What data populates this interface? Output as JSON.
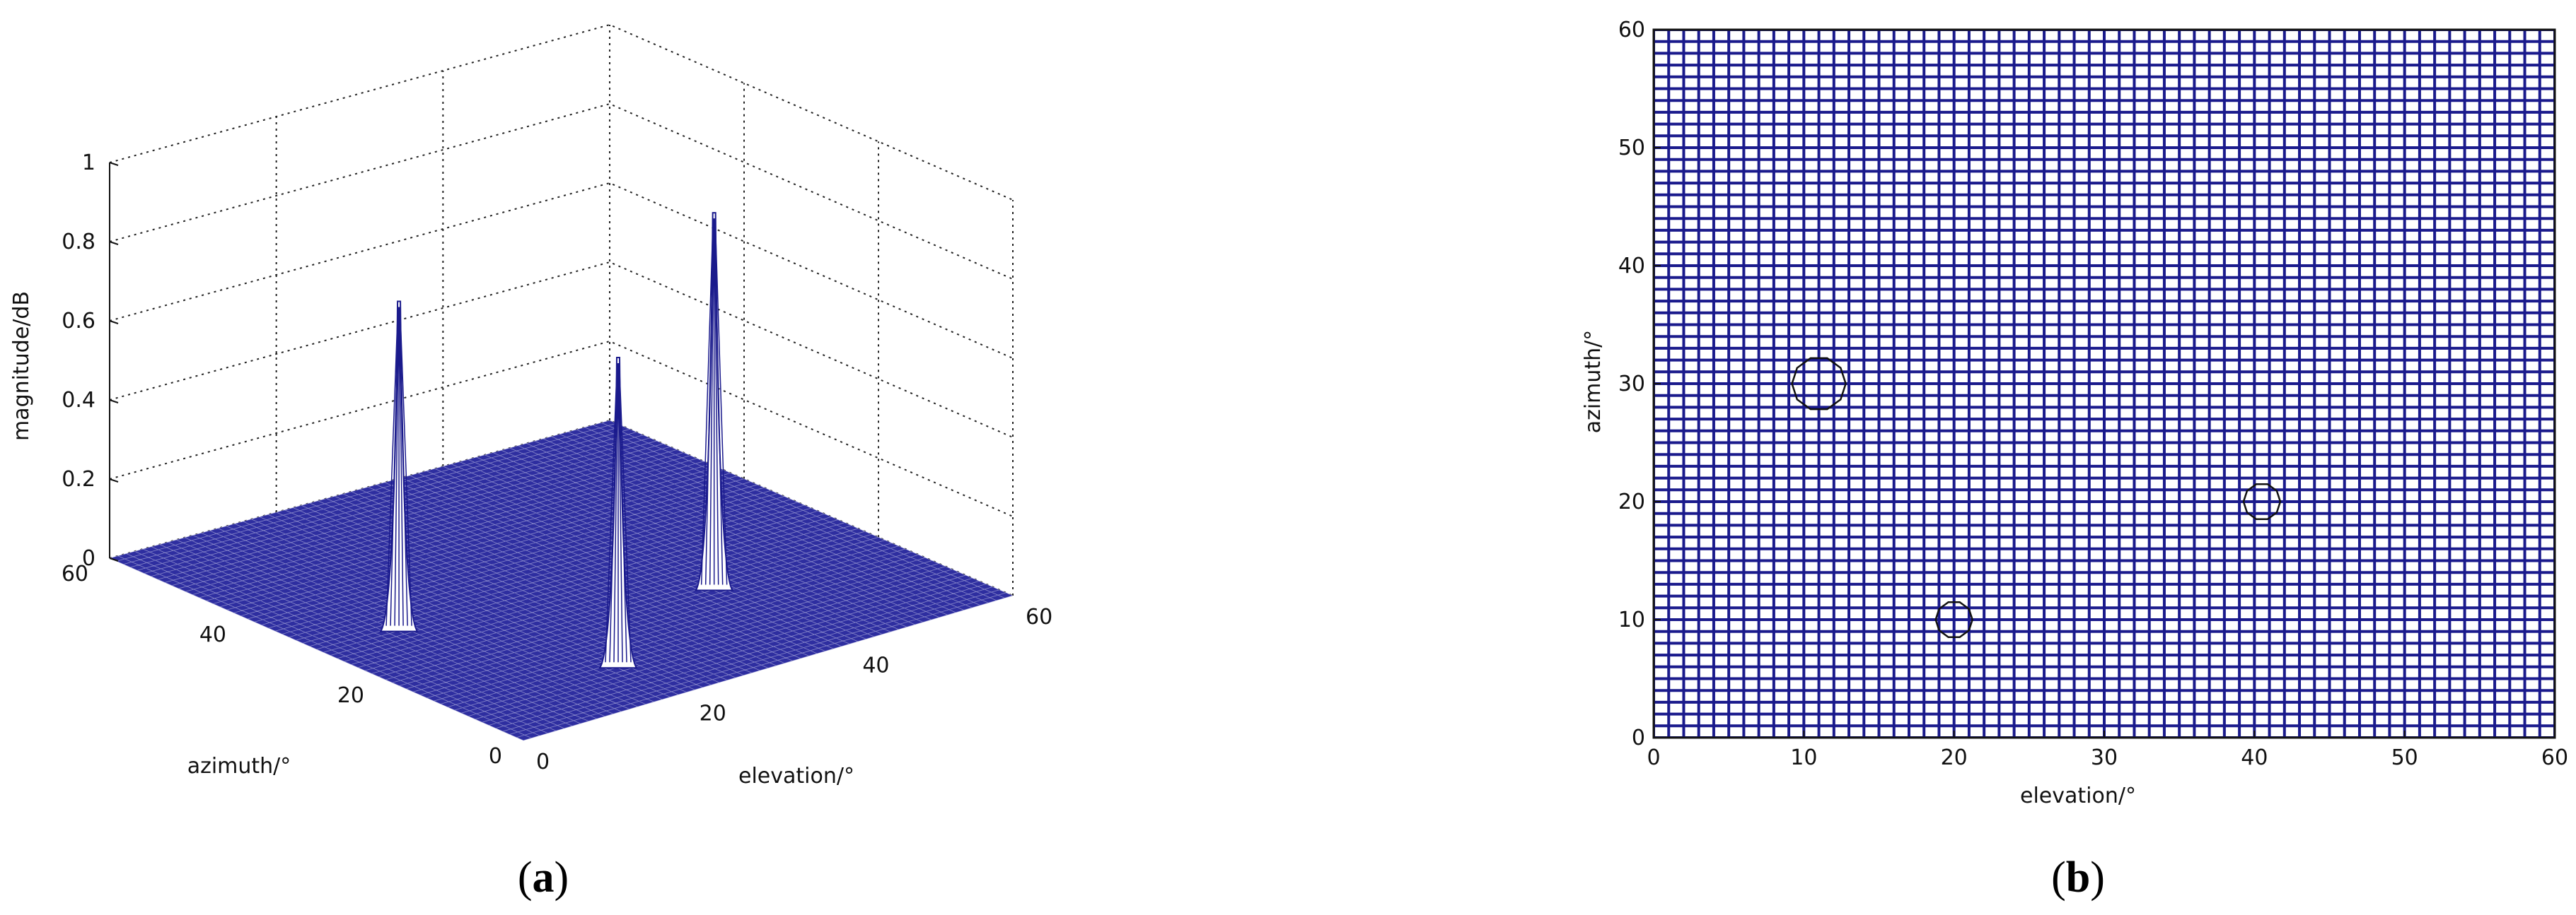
{
  "chart_data": [
    {
      "type": "surface3d",
      "panel_label": "a",
      "zlabel": "magnitude/dB",
      "xlabel": "azimuth/°",
      "ylabel": "elevation/°",
      "xlim": [
        0,
        60
      ],
      "ylim": [
        0,
        60
      ],
      "zlim": [
        0,
        1
      ],
      "xticks": [
        0,
        20,
        40,
        60
      ],
      "yticks": [
        0,
        20,
        40,
        60
      ],
      "zticks": [
        0,
        0.2,
        0.4,
        0.6,
        0.8,
        1
      ],
      "ztick_labels": [
        "0",
        "0.2",
        "0.4",
        "0.6",
        "0.8",
        "1"
      ],
      "grid": true,
      "mesh_color": "#1a1a8c",
      "peaks": [
        {
          "azimuth": 30,
          "elevation": 10,
          "magnitude": 0.82
        },
        {
          "azimuth": 10,
          "elevation": 20,
          "magnitude": 0.77
        },
        {
          "azimuth": 20,
          "elevation": 40,
          "magnitude": 0.94
        }
      ]
    },
    {
      "type": "heatmap",
      "panel_label": "b",
      "xlabel": "elevation/°",
      "ylabel": "azimuth/°",
      "xlim": [
        0,
        60
      ],
      "ylim": [
        0,
        60
      ],
      "xticks": [
        0,
        10,
        20,
        30,
        40,
        50,
        60
      ],
      "yticks": [
        0,
        10,
        20,
        30,
        40,
        50,
        60
      ],
      "grid": true,
      "mesh_color": "#1a1a8c",
      "markers": [
        {
          "elevation": 11,
          "azimuth": 30
        },
        {
          "elevation": 20,
          "azimuth": 10
        },
        {
          "elevation": 40.5,
          "azimuth": 20
        }
      ]
    }
  ]
}
